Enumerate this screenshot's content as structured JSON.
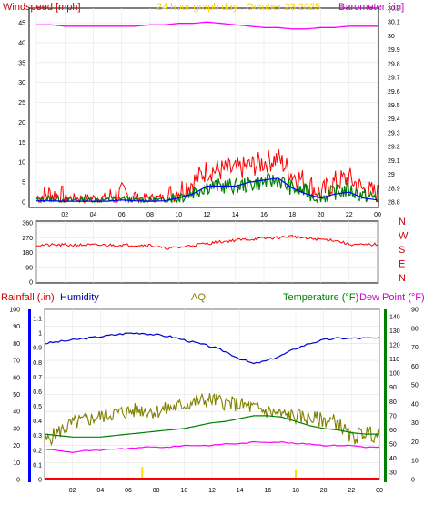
{
  "chart_data": [
    {
      "type": "line",
      "panel": "wind-barometer",
      "title": "24 hour graph day : October 23 2025",
      "ylabel_left": "Windspeed [mph]",
      "ylabel_right": "Barometer [.in]",
      "ylim_left": [
        0,
        50
      ],
      "ylim_right": [
        28.8,
        30.2
      ],
      "yticks_left": [
        "50",
        "45",
        "40",
        "35",
        "30",
        "25",
        "20",
        "15",
        "10",
        "5",
        "0"
      ],
      "yticks_right": [
        "30.2",
        "30.1",
        "30",
        "29.9",
        "29.8",
        "29.7",
        "29.6",
        "29.5",
        "29.4",
        "29.3",
        "29.2",
        "29.1",
        "29",
        "28.9",
        "28.8"
      ],
      "xticks": [
        "02",
        "04",
        "06",
        "08",
        "10",
        "12",
        "14",
        "16",
        "18",
        "20",
        "22",
        "00"
      ],
      "grid": true,
      "colors": {
        "gust": "#ff0000",
        "average": "#008000",
        "wind_line": "#0000ff",
        "barometer": "#ff00ff"
      },
      "x_hours": [
        0,
        1,
        2,
        3,
        4,
        5,
        6,
        7,
        8,
        9,
        10,
        11,
        12,
        13,
        14,
        15,
        16,
        17,
        18,
        19,
        20,
        21,
        22,
        23,
        24
      ],
      "series": [
        {
          "key": "gust",
          "values": [
            1,
            2,
            1,
            1,
            1,
            1,
            2,
            1,
            1,
            1,
            3,
            5,
            8,
            8,
            8,
            9,
            10,
            11,
            7,
            5,
            2,
            5,
            6,
            3,
            2
          ]
        },
        {
          "key": "wind_line",
          "values": [
            0.3,
            0.3,
            0.2,
            0.2,
            0.2,
            0.2,
            0.5,
            0.3,
            0.2,
            0.3,
            1,
            2,
            4,
            4,
            4,
            5,
            5.5,
            6,
            3.5,
            2,
            1,
            2,
            2.5,
            1,
            0.5
          ]
        },
        {
          "key": "average",
          "values": [
            0.5,
            1,
            0.5,
            0.5,
            0.5,
            0.5,
            1,
            0.5,
            0.5,
            0.5,
            1.5,
            2.5,
            4,
            4,
            4,
            4.5,
            5,
            5.5,
            3.5,
            2.5,
            1,
            2.5,
            3,
            1.5,
            1
          ]
        },
        {
          "key": "barometer",
          "values": [
            30.08,
            30.08,
            30.07,
            30.07,
            30.07,
            30.07,
            30.07,
            30.07,
            30.08,
            30.08,
            30.09,
            30.09,
            30.1,
            30.09,
            30.08,
            30.07,
            30.06,
            30.06,
            30.05,
            30.05,
            30.06,
            30.06,
            30.07,
            30.07,
            30.07
          ]
        }
      ]
    },
    {
      "type": "line",
      "panel": "wind-direction",
      "yticks_left": [
        "360",
        "270",
        "180",
        "90",
        "0"
      ],
      "ylim": [
        0,
        360
      ],
      "direction_labels": [
        "N",
        "W",
        "S",
        "E",
        "N"
      ],
      "colors": {
        "direction": "#ff0000"
      },
      "x_hours": [
        0,
        1,
        2,
        3,
        4,
        5,
        6,
        7,
        8,
        9,
        10,
        11,
        12,
        13,
        14,
        15,
        16,
        17,
        18,
        19,
        20,
        21,
        22,
        23,
        24
      ],
      "values": [
        225,
        225,
        225,
        225,
        225,
        225,
        225,
        225,
        225,
        205,
        210,
        225,
        235,
        245,
        255,
        260,
        265,
        270,
        280,
        265,
        260,
        255,
        230,
        225,
        230
      ]
    },
    {
      "type": "line",
      "panel": "rain-humidity-aqi-temp",
      "label_rainfall": "Rainfall (.in)",
      "label_humidity": "Humidity",
      "label_aqi": "AQI",
      "label_temperature": "Temperature (°F)",
      "label_dewpoint": "Dew Point (°F)",
      "yticks_humidity": [
        "100",
        "90",
        "80",
        "70",
        "60",
        "50",
        "40",
        "30",
        "20",
        "10",
        "0"
      ],
      "yticks_rain": [
        "1.1",
        "1",
        "0.9",
        "0.8",
        "0.7",
        "0.6",
        "0.5",
        "0.4",
        "0.3",
        "0.2",
        "0.1",
        "0"
      ],
      "yticks_temp": [
        "140",
        "130",
        "120",
        "110",
        "100",
        "90",
        "80",
        "70",
        "60",
        "50",
        "40",
        "30"
      ],
      "yticks_dew": [
        "90",
        "80",
        "70",
        "60",
        "50",
        "40",
        "30",
        "20",
        "10",
        "0"
      ],
      "xticks": [
        "02",
        "04",
        "06",
        "08",
        "10",
        "12",
        "14",
        "16",
        "18",
        "20",
        "22",
        "00"
      ],
      "ylim_humidity": [
        0,
        100
      ],
      "ylim_temp": [
        25,
        145
      ],
      "colors": {
        "humidity": "#0000cc",
        "aqi": "#808000",
        "temperature": "#008000",
        "dewpoint": "#ff00ff",
        "rainfall": "#ff0000",
        "bars": "#ffdd00"
      },
      "x_hours": [
        0,
        1,
        2,
        3,
        4,
        5,
        6,
        7,
        8,
        9,
        10,
        11,
        12,
        13,
        14,
        15,
        16,
        17,
        18,
        19,
        20,
        21,
        22,
        23,
        24
      ],
      "series": [
        {
          "key": "humidity",
          "values": [
            80,
            81,
            82,
            83,
            84,
            85,
            86,
            86,
            85,
            84,
            82,
            80,
            78,
            75,
            71,
            68,
            70,
            73,
            77,
            80,
            82,
            83,
            83,
            83,
            83
          ]
        },
        {
          "key": "aqi",
          "values": [
            22,
            28,
            33,
            35,
            37,
            39,
            40,
            41,
            40,
            42,
            44,
            46,
            47,
            45,
            44,
            42,
            40,
            38,
            37,
            36,
            35,
            34,
            24,
            28,
            25
          ]
        },
        {
          "key": "temperature",
          "values": [
            57,
            56,
            55,
            55,
            55,
            56,
            57,
            58,
            59,
            60,
            61,
            63,
            65,
            66,
            68,
            70,
            70,
            69,
            66,
            63,
            61,
            60,
            58,
            57,
            57
          ]
        },
        {
          "key": "dewpoint",
          "values": [
            18,
            17,
            16,
            17,
            17,
            18,
            18,
            19,
            19,
            19,
            20,
            20,
            20,
            21,
            21,
            22,
            22,
            22,
            21,
            21,
            20,
            20,
            20,
            19,
            19
          ]
        }
      ],
      "bars_hours": [
        7,
        18
      ],
      "bars_values": [
        7,
        5
      ]
    }
  ]
}
